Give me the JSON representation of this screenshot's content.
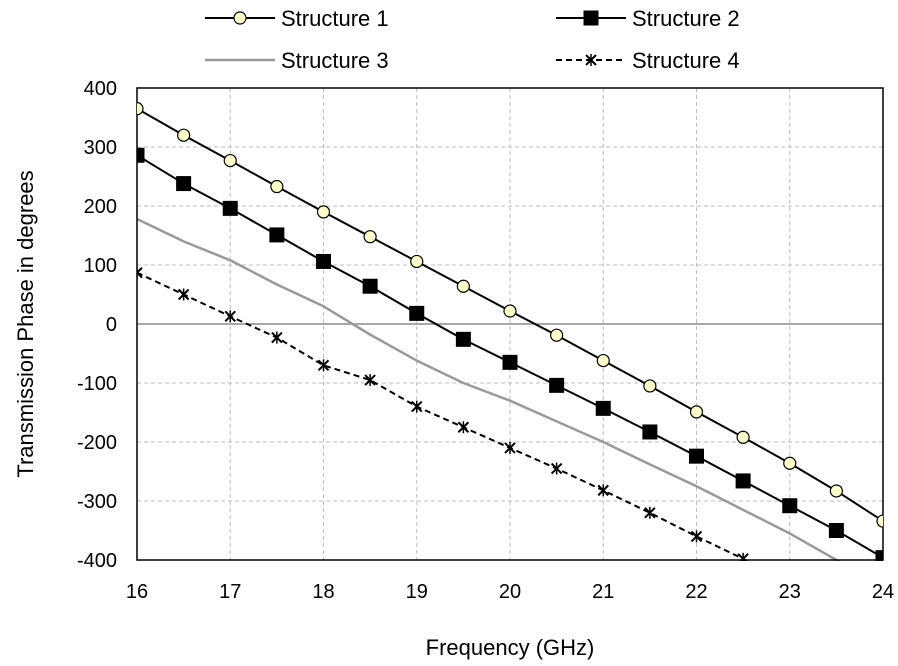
{
  "chart_data": {
    "type": "line",
    "xlabel": "Frequency (GHz)",
    "ylabel": "Transmission Phase in degrees",
    "xlim": [
      16,
      24
    ],
    "ylim": [
      -400,
      400
    ],
    "x_ticks": [
      "16",
      "17",
      "18",
      "19",
      "20",
      "21",
      "22",
      "23",
      "24"
    ],
    "y_ticks": [
      "400",
      "300",
      "200",
      "100",
      "0",
      "-100",
      "-200",
      "-300",
      "-400"
    ],
    "grid": "dashed",
    "legend_position": "top",
    "series": [
      {
        "name": "Structure 1",
        "color": "#000000",
        "marker": "circle-open",
        "marker_fill": "#ffffcc",
        "line_style": "solid",
        "x": [
          16,
          16.5,
          17,
          17.5,
          18,
          18.5,
          19,
          19.5,
          20,
          20.5,
          21,
          21.5,
          22,
          22.5,
          23,
          23.5,
          24
        ],
        "y": [
          365,
          320,
          277,
          233,
          190,
          148,
          106,
          64,
          22,
          -19,
          -62,
          -105,
          -149,
          -192,
          -236,
          -283,
          -334
        ]
      },
      {
        "name": "Structure 2",
        "color": "#000000",
        "marker": "square-filled",
        "marker_fill": "#000000",
        "line_style": "solid",
        "x": [
          16,
          16.5,
          17,
          17.5,
          18,
          18.5,
          19,
          19.5,
          20,
          20.5,
          21,
          21.5,
          22,
          22.5,
          23,
          23.5,
          24
        ],
        "y": [
          286,
          238,
          196,
          151,
          106,
          64,
          18,
          -26,
          -65,
          -104,
          -143,
          -183,
          -224,
          -266,
          -308,
          -350,
          -396
        ]
      },
      {
        "name": "Structure 3",
        "color": "#999999",
        "marker": "none",
        "line_style": "solid",
        "x": [
          16,
          16.5,
          17,
          17.5,
          18,
          18.5,
          19,
          19.5,
          20,
          20.5,
          21,
          21.5,
          22,
          22.5,
          23,
          23.5,
          24
        ],
        "y": [
          178,
          140,
          108,
          67,
          30,
          -18,
          -62,
          -100,
          -130,
          -165,
          -200,
          -238,
          -275,
          -315,
          -355,
          -400,
          -440
        ]
      },
      {
        "name": "Structure 4",
        "color": "#000000",
        "marker": "asterisk",
        "line_style": "dashed",
        "x": [
          16,
          16.5,
          17,
          17.5,
          18,
          18.5,
          19,
          19.5,
          20,
          20.5,
          21,
          21.5,
          22,
          22.5,
          23
        ],
        "y": [
          87,
          50,
          13,
          -23,
          -70,
          -95,
          -140,
          -175,
          -210,
          -245,
          -282,
          -320,
          -360,
          -398,
          -440
        ]
      }
    ]
  }
}
